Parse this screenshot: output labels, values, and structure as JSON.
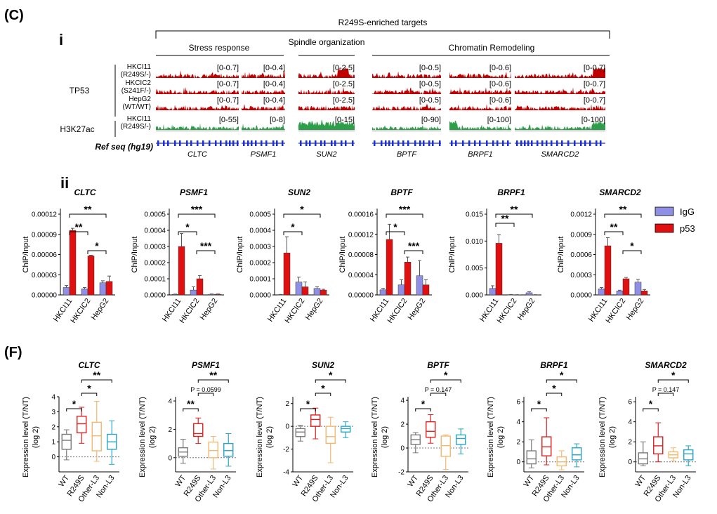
{
  "panels": {
    "C": "(C)",
    "F": "(F)",
    "i": "i",
    "ii": "ii"
  },
  "tracks": {
    "top_label": "R249S-enriched targets",
    "groups": [
      {
        "name": "Stress response"
      },
      {
        "name": "Spindle organization"
      },
      {
        "name": "Chromatin Remodeling"
      }
    ],
    "tp53_label": "TP53",
    "h3k27ac_label": "H3K27ac",
    "refseq_label": "Ref seq (hg19)",
    "rows": [
      {
        "line1": "HKCI11",
        "line2": "(R249S/-)"
      },
      {
        "line1": "HKCIC2",
        "line2": "(S241F/-)"
      },
      {
        "line1": "HepG2",
        "line2": "(WT/WT)"
      },
      {
        "line1": "HKCI11",
        "line2": "(R249S/-)"
      }
    ],
    "genes": [
      {
        "name": "CLTC",
        "ranges": [
          "[0-0.7]",
          "[0-0.7]",
          "[0-0.7]",
          "[0-55]"
        ]
      },
      {
        "name": "PSMF1",
        "ranges": [
          "[0-0.4]",
          "[0-0.4]",
          "[0-0.4]",
          "[0-8]"
        ]
      },
      {
        "name": "SUN2",
        "ranges": [
          "[0-2.5]",
          "[0-2.5]",
          "[0-2.5]",
          "[0-15]"
        ]
      },
      {
        "name": "BPTF",
        "ranges": [
          "[0-0.5]",
          "[0-0.5]",
          "[0-0.5]",
          "[0-90]"
        ]
      },
      {
        "name": "BRPF1",
        "ranges": [
          "[0-0.6]",
          "[0-0.6]",
          "[0-0.6]",
          "[0-100]"
        ]
      },
      {
        "name": "SMARCD2",
        "ranges": [
          "[0-0.7]",
          "[0-0.7]",
          "[0-0.7]",
          "[0-100]"
        ]
      }
    ],
    "colors": {
      "tp53": "#c00000",
      "h3k27ac": "#2e9e4a",
      "refseq": "#1a2fd8"
    }
  },
  "legend": [
    {
      "name": "IgG",
      "color": "#8f8fe6"
    },
    {
      "name": "p53",
      "color": "#e01010"
    }
  ],
  "chart_data": [
    {
      "type": "bar",
      "title": "CLTC",
      "ylabel": "ChIP/Input",
      "categories": [
        "HKCI11",
        "HKCIC2",
        "HepG2"
      ],
      "yticks": [
        "0.00000",
        "0.00003",
        "0.00006",
        "0.00009",
        "0.00012"
      ],
      "ylim": [
        0,
        0.00012
      ],
      "series": [
        {
          "name": "IgG",
          "values": [
            1.1e-05,
            9e-06,
            1.8e-05
          ],
          "err": [
            3e-06,
            2e-06,
            3e-06
          ]
        },
        {
          "name": "p53",
          "values": [
            9.6e-05,
            5.8e-05,
            2e-05
          ],
          "err": [
            3e-06,
            1e-06,
            8e-06
          ]
        }
      ],
      "sig": [
        {
          "from": 0,
          "to": 1,
          "label": "**"
        },
        {
          "from": 0,
          "to": 2,
          "label": "**"
        },
        {
          "from": 1,
          "to": 2,
          "label": "*"
        }
      ]
    },
    {
      "type": "bar",
      "title": "PSMF1",
      "ylabel": "ChIP/Input",
      "categories": [
        "HKCI11",
        "HKCIC2",
        "HepG2"
      ],
      "yticks": [
        "0.0000",
        "0.0001",
        "0.0002",
        "0.0003",
        "0.0004",
        "0.0005"
      ],
      "ylim": [
        0,
        0.0005
      ],
      "series": [
        {
          "name": "IgG",
          "values": [
            3e-06,
            3e-05,
            4e-06
          ],
          "err": [
            2e-06,
            2e-05,
            2e-06
          ]
        },
        {
          "name": "p53",
          "values": [
            0.0003,
            0.0001,
            4e-06
          ],
          "err": [
            8e-05,
            2e-05,
            2e-06
          ]
        }
      ],
      "sig": [
        {
          "from": 0,
          "to": 1,
          "label": "*"
        },
        {
          "from": 0,
          "to": 2,
          "label": "***"
        },
        {
          "from": 1,
          "to": 2,
          "label": "***"
        }
      ]
    },
    {
      "type": "bar",
      "title": "SUN2",
      "ylabel": "ChIP/Input",
      "categories": [
        "HKCI11",
        "HKCIC2",
        "HepG2"
      ],
      "yticks": [
        "0.0000",
        "0.0001",
        "0.0002",
        "0.0003",
        "0.0004",
        "0.0005"
      ],
      "ylim": [
        0,
        0.0005
      ],
      "series": [
        {
          "name": "IgG",
          "values": [
            2e-06,
            8e-05,
            4e-05
          ],
          "err": [
            1e-06,
            3e-05,
            1e-05
          ]
        },
        {
          "name": "p53",
          "values": [
            0.00026,
            5e-05,
            3e-05
          ],
          "err": [
            0.0001,
            3e-05,
            5e-06
          ]
        }
      ],
      "sig": [
        {
          "from": 0,
          "to": 1,
          "label": "*"
        },
        {
          "from": 0,
          "to": 2,
          "label": "*"
        }
      ]
    },
    {
      "type": "bar",
      "title": "BPTF",
      "ylabel": "ChIP/Input",
      "categories": [
        "HKCI11",
        "HKCIC2",
        "HepG2"
      ],
      "yticks": [
        "0.00000",
        "0.00004",
        "0.00008",
        "0.00012",
        "0.00016"
      ],
      "ylim": [
        0,
        0.00016
      ],
      "series": [
        {
          "name": "IgG",
          "values": [
            1e-05,
            2e-05,
            3.8e-05
          ],
          "err": [
            3e-06,
            1e-05,
            3e-05
          ]
        },
        {
          "name": "p53",
          "values": [
            0.00011,
            6.5e-05,
            2e-05
          ],
          "err": [
            3e-05,
            1e-05,
            1e-05
          ]
        }
      ],
      "sig": [
        {
          "from": 0,
          "to": 1,
          "label": "*"
        },
        {
          "from": 0,
          "to": 2,
          "label": "***"
        },
        {
          "from": 1,
          "to": 2,
          "label": "***"
        }
      ]
    },
    {
      "type": "bar",
      "title": "BRPF1",
      "ylabel": "ChIP/Input",
      "categories": [
        "HKCI11",
        "HKCIC2",
        "HepG2"
      ],
      "yticks": [
        "0.000",
        "0.005",
        "0.010",
        "0.015"
      ],
      "ylim": [
        0,
        0.015
      ],
      "series": [
        {
          "name": "IgG",
          "values": [
            0.0012,
            5e-05,
            0.0004
          ],
          "err": [
            0.0005,
            3e-05,
            0.0002
          ]
        },
        {
          "name": "p53",
          "values": [
            0.0096,
            3e-05,
            3e-05
          ],
          "err": [
            0.0016,
            2e-05,
            2e-05
          ]
        }
      ],
      "sig": [
        {
          "from": 0,
          "to": 1,
          "label": "**"
        },
        {
          "from": 0,
          "to": 2,
          "label": "**"
        }
      ]
    },
    {
      "type": "bar",
      "title": "SMARCD2",
      "ylabel": "ChIP/Input",
      "categories": [
        "HKCI11",
        "HKCIC2",
        "HepG2"
      ],
      "yticks": [
        "0.0000",
        "0.0003",
        "0.0006",
        "0.0009",
        "0.0012"
      ],
      "ylim": [
        0,
        0.0012
      ],
      "series": [
        {
          "name": "IgG",
          "values": [
            9e-05,
            6e-05,
            0.00019
          ],
          "err": [
            2e-05,
            1e-05,
            4e-05
          ]
        },
        {
          "name": "p53",
          "values": [
            0.00073,
            0.00024,
            6e-05
          ],
          "err": [
            0.00012,
            2e-05,
            2e-05
          ]
        }
      ],
      "sig": [
        {
          "from": 0,
          "to": 1,
          "label": "**"
        },
        {
          "from": 0,
          "to": 2,
          "label": "**"
        },
        {
          "from": 1,
          "to": 2,
          "label": "*"
        }
      ]
    },
    {
      "type": "box",
      "title": "CLTC",
      "ylabel": "Expression level (T/NT)",
      "ylabel2": "(log 2)",
      "categories": [
        "WT",
        "R249S",
        "Other-L3",
        "Non-L3"
      ],
      "yticks": [
        0,
        1,
        2,
        3,
        4
      ],
      "ylim": [
        -1,
        4
      ],
      "boxes": [
        {
          "min": -0.2,
          "q1": 0.5,
          "med": 1.1,
          "q3": 1.5,
          "max": 1.8
        },
        {
          "min": 0.9,
          "q1": 1.6,
          "med": 2.2,
          "q3": 2.7,
          "max": 3.3
        },
        {
          "min": -0.3,
          "q1": 0.4,
          "med": 1.4,
          "q3": 2.3,
          "max": 3.7
        },
        {
          "min": -0.5,
          "q1": 0.5,
          "med": 1.0,
          "q3": 1.5,
          "max": 2.4
        }
      ],
      "sig": [
        {
          "from": 0,
          "to": 1,
          "label": "*"
        },
        {
          "from": 1,
          "to": 2,
          "label": "*"
        },
        {
          "from": 1,
          "to": 3,
          "label": "**"
        }
      ]
    },
    {
      "type": "box",
      "title": "PSMF1",
      "ylabel": "Expression level (T/NT)",
      "ylabel2": "(log 2)",
      "categories": [
        "WT",
        "R249S",
        "Other-L3",
        "Non-L3"
      ],
      "yticks": [
        0,
        2,
        4
      ],
      "ylim": [
        -1,
        4.3
      ],
      "boxes": [
        {
          "min": -0.4,
          "q1": 0.1,
          "med": 0.4,
          "q3": 0.7,
          "max": 1.3
        },
        {
          "min": 1.0,
          "q1": 1.5,
          "med": 1.7,
          "q3": 2.4,
          "max": 2.8
        },
        {
          "min": -0.8,
          "q1": 0.0,
          "med": 0.5,
          "q3": 1.1,
          "max": 1.5
        },
        {
          "min": -0.6,
          "q1": 0.1,
          "med": 0.5,
          "q3": 1.0,
          "max": 1.7
        }
      ],
      "sig": [
        {
          "from": 0,
          "to": 1,
          "label": "**"
        },
        {
          "from": 1,
          "to": 2,
          "label": "P = 0.0599"
        },
        {
          "from": 1,
          "to": 3,
          "label": "**"
        }
      ]
    },
    {
      "type": "box",
      "title": "SUN2",
      "ylabel": "Expression level (T/NT)",
      "ylabel2": "(log 2)",
      "categories": [
        "WT",
        "R249S",
        "Other-L3",
        "Non-L3"
      ],
      "yticks": [
        -4,
        -2,
        0,
        2
      ],
      "ylim": [
        -4,
        2.6
      ],
      "boxes": [
        {
          "min": -1.3,
          "q1": -0.9,
          "med": -0.5,
          "q3": -0.2,
          "max": 0.1
        },
        {
          "min": -1.1,
          "q1": 0.0,
          "med": 0.6,
          "q3": 1.0,
          "max": 1.6
        },
        {
          "min": -3.2,
          "q1": -1.5,
          "med": -0.9,
          "q3": 0.0,
          "max": 0.8
        },
        {
          "min": -1.0,
          "q1": -0.5,
          "med": -0.2,
          "q3": 0.0,
          "max": 0.4
        }
      ],
      "sig": [
        {
          "from": 0,
          "to": 1,
          "label": "*"
        },
        {
          "from": 1,
          "to": 2,
          "label": "*"
        },
        {
          "from": 1,
          "to": 3,
          "label": "*"
        }
      ]
    },
    {
      "type": "box",
      "title": "BPTF",
      "ylabel": "Expression level (T/NT)",
      "ylabel2": "(log 2)",
      "categories": [
        "WT",
        "R249S",
        "Other-L3",
        "Non-L3"
      ],
      "yticks": [
        -2,
        0,
        2,
        4
      ],
      "ylim": [
        -2,
        4.3
      ],
      "boxes": [
        {
          "min": -0.4,
          "q1": 0.3,
          "med": 0.7,
          "q3": 1.1,
          "max": 1.3
        },
        {
          "min": 0.4,
          "q1": 0.9,
          "med": 1.4,
          "q3": 2.2,
          "max": 2.8
        },
        {
          "min": -1.8,
          "q1": -0.7,
          "med": 0.2,
          "q3": 1.0,
          "max": 1.1
        },
        {
          "min": -0.5,
          "q1": 0.3,
          "med": 0.8,
          "q3": 1.1,
          "max": 1.6
        }
      ],
      "sig": [
        {
          "from": 0,
          "to": 1,
          "label": "*"
        },
        {
          "from": 1,
          "to": 2,
          "label": "P = 0.147"
        },
        {
          "from": 1,
          "to": 3,
          "label": "*"
        }
      ]
    },
    {
      "type": "box",
      "title": "BRPF1",
      "ylabel": "Expression level (T/NT)",
      "ylabel2": "(log 2)",
      "categories": [
        "WT",
        "R249S",
        "Other-L3",
        "Non-L3"
      ],
      "yticks": [
        0,
        2,
        4,
        6
      ],
      "ylim": [
        -1,
        6.5
      ],
      "boxes": [
        {
          "min": -0.6,
          "q1": -0.2,
          "med": 0.3,
          "q3": 1.1,
          "max": 2.2
        },
        {
          "min": -0.3,
          "q1": 0.6,
          "med": 1.5,
          "q3": 2.5,
          "max": 4.4
        },
        {
          "min": -0.8,
          "q1": -0.4,
          "med": 0.0,
          "q3": 0.5,
          "max": 1.1
        },
        {
          "min": -0.5,
          "q1": 0.2,
          "med": 0.7,
          "q3": 1.4,
          "max": 1.8
        }
      ],
      "sig": [
        {
          "from": 0,
          "to": 1,
          "label": "*"
        },
        {
          "from": 1,
          "to": 2,
          "label": "*"
        },
        {
          "from": 1,
          "to": 3,
          "label": "*"
        }
      ]
    },
    {
      "type": "box",
      "title": "SMARCD2",
      "ylabel": "Expression level (T/NT)",
      "ylabel2": "(log 2)",
      "categories": [
        "WT",
        "R249S",
        "Other-L3",
        "Non-L3"
      ],
      "yticks": [
        0,
        2,
        4,
        6
      ],
      "ylim": [
        -1,
        6.5
      ],
      "boxes": [
        {
          "min": -0.4,
          "q1": -0.2,
          "med": 0.3,
          "q3": 0.9,
          "max": 2.0
        },
        {
          "min": 0.0,
          "q1": 0.8,
          "med": 1.6,
          "q3": 2.5,
          "max": 3.9
        },
        {
          "min": 0.1,
          "q1": 0.4,
          "med": 0.7,
          "q3": 1.0,
          "max": 1.4
        },
        {
          "min": -0.4,
          "q1": 0.2,
          "med": 0.8,
          "q3": 1.2,
          "max": 1.6
        }
      ],
      "sig": [
        {
          "from": 0,
          "to": 1,
          "label": "*"
        },
        {
          "from": 1,
          "to": 2,
          "label": "P = 0.147"
        },
        {
          "from": 1,
          "to": 3,
          "label": "*"
        }
      ]
    }
  ]
}
